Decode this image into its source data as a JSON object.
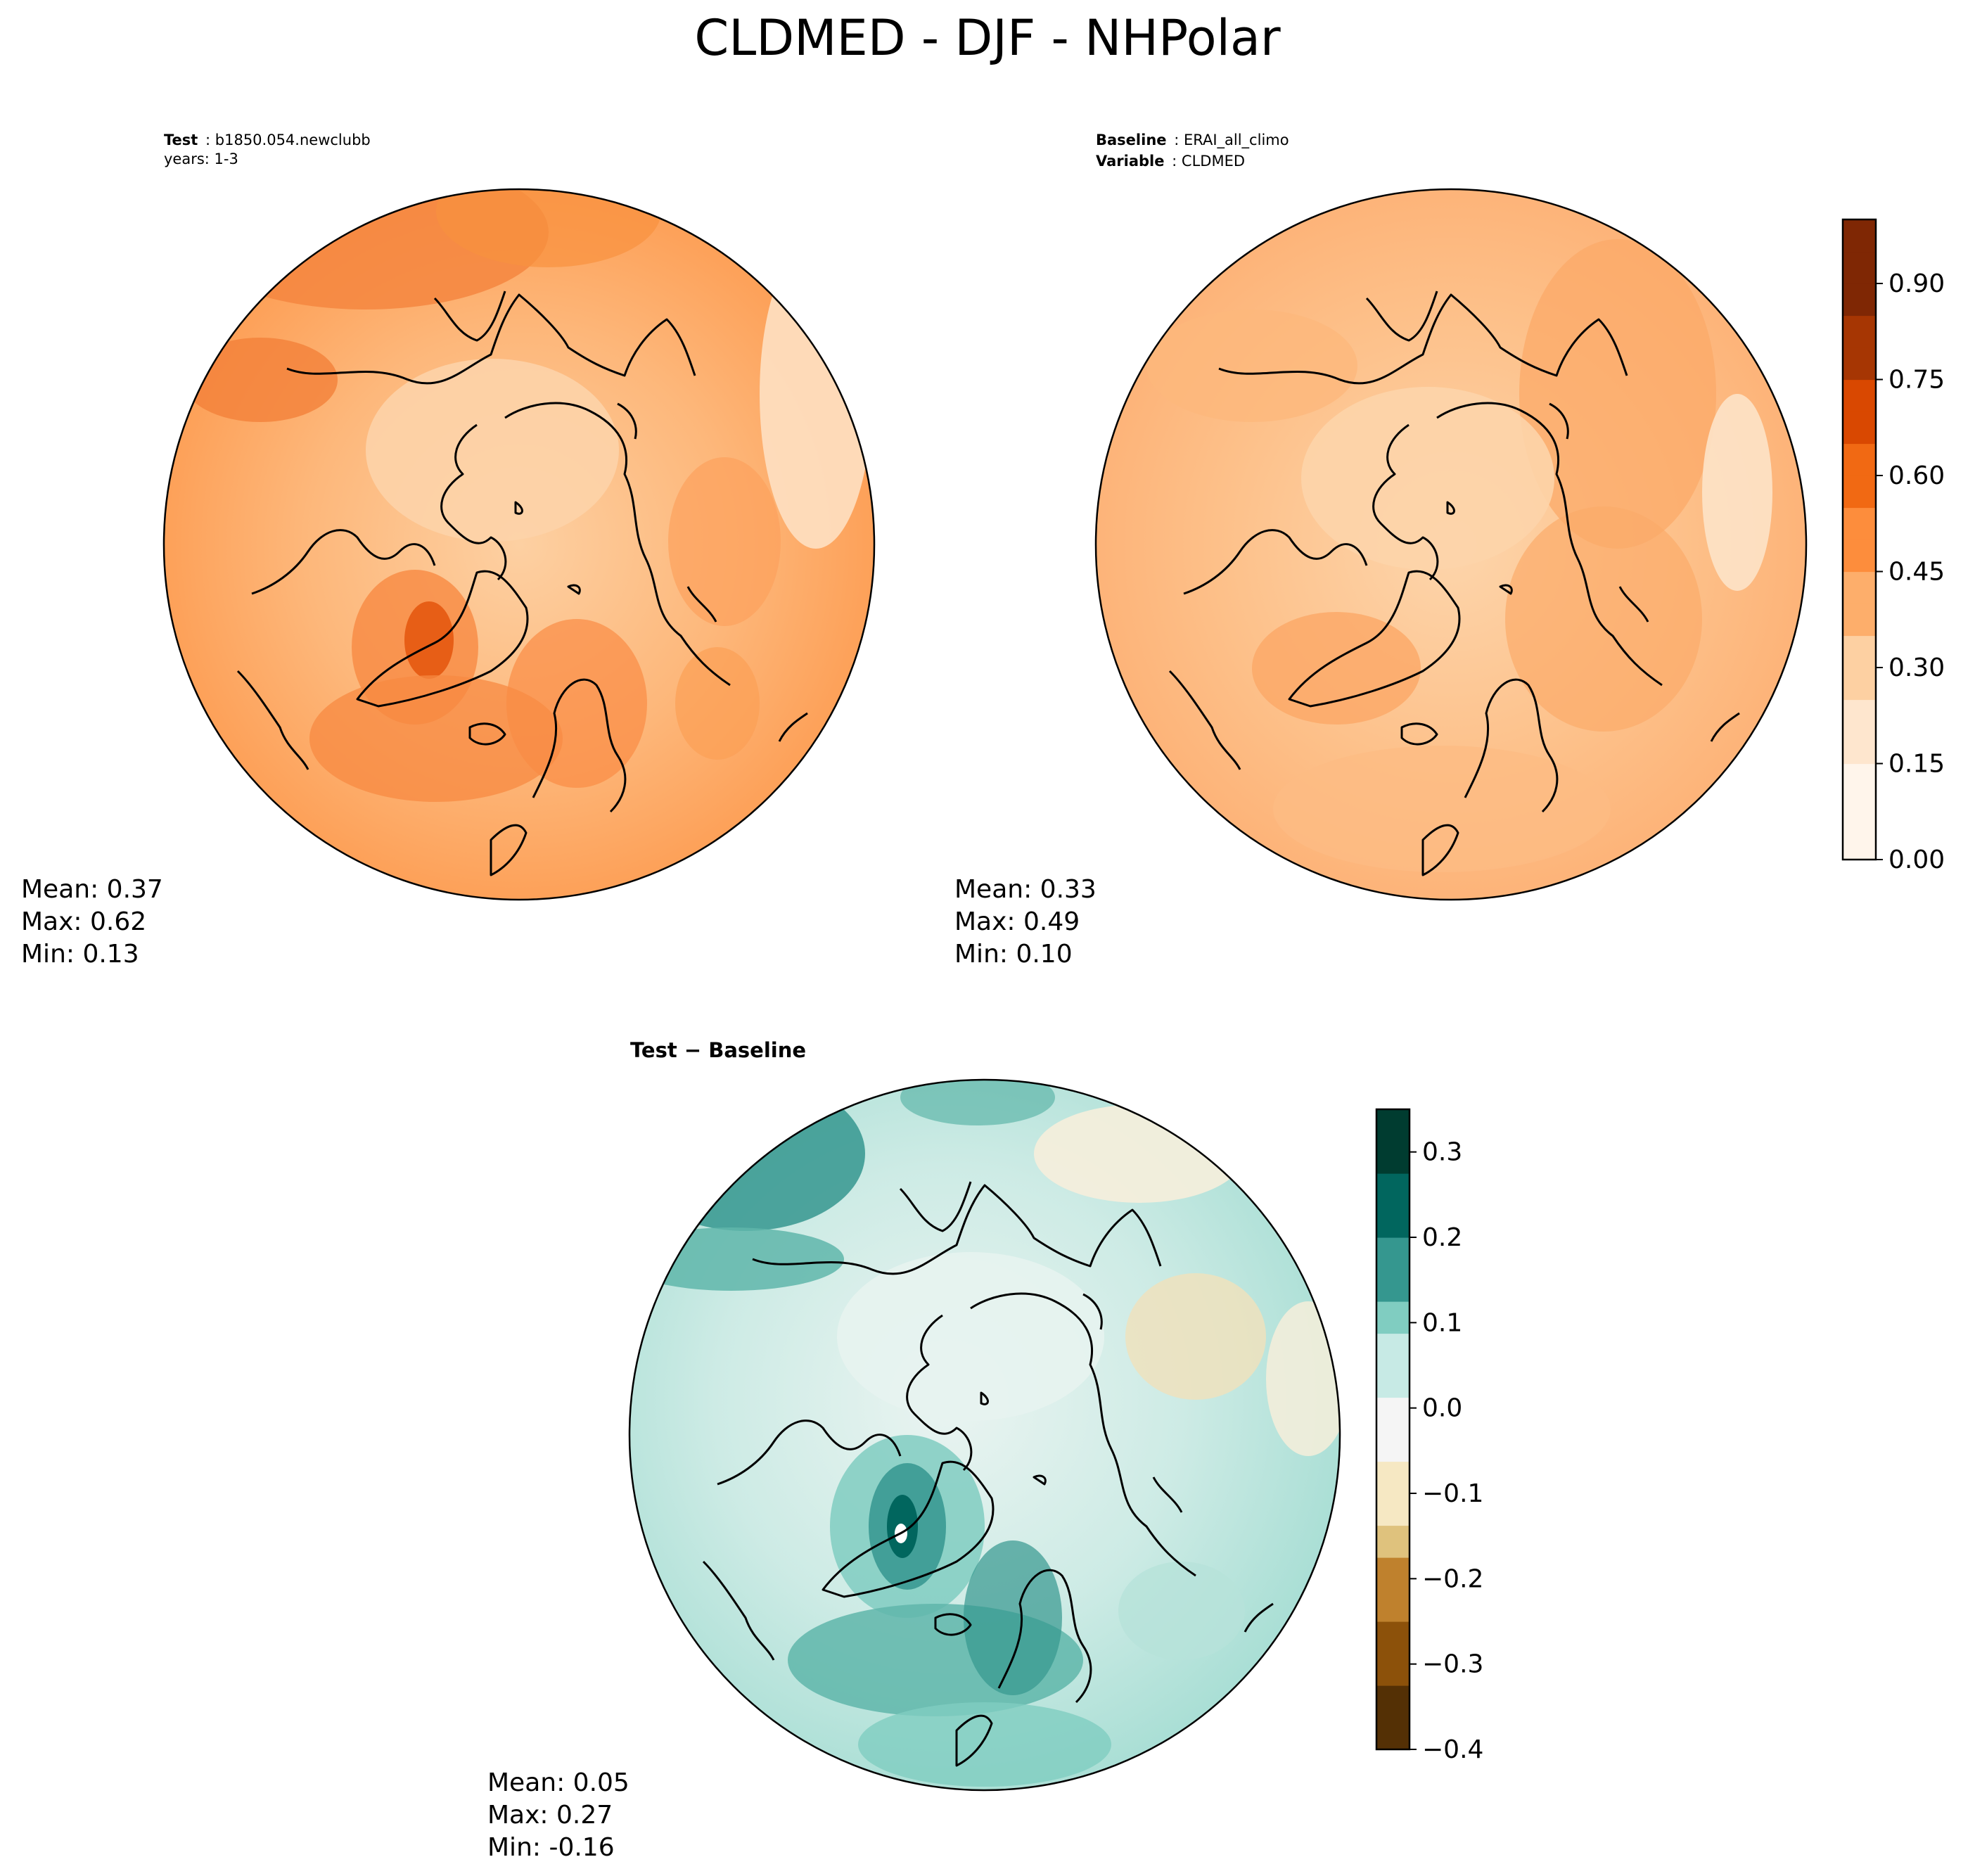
{
  "title": "CLDMED - DJF - NHPolar",
  "panels": {
    "test": {
      "header_label": "Test",
      "header_value": "b1850.054.newclubb",
      "header_line2": "years: 1-3",
      "mean": "Mean:  0.37",
      "max": "Max:  0.62",
      "min": "Min:  0.13"
    },
    "baseline": {
      "header_label": "Baseline",
      "header_value": "ERAI_all_climo",
      "header_label2": "Variable",
      "header_value2": "CLDMED",
      "mean": "Mean:  0.33",
      "max": "Max:  0.49",
      "min": "Min:  0.10"
    },
    "diff": {
      "title": "Test − Baseline",
      "mean": "Mean:  0.05",
      "max": "Max:  0.27",
      "min": "Min: -0.16"
    }
  },
  "colorbar_top": {
    "ticks": [
      "0.00",
      "0.15",
      "0.30",
      "0.45",
      "0.60",
      "0.75",
      "0.90"
    ],
    "range": [
      0.0,
      1.0
    ],
    "colors": [
      "#fff5eb",
      "#fee6ce",
      "#fdd0a2",
      "#fdae6b",
      "#fd8d3c",
      "#f16913",
      "#d94801",
      "#a63603",
      "#7f2704"
    ]
  },
  "colorbar_diff": {
    "ticks": [
      "−0.4",
      "−0.3",
      "−0.2",
      "−0.1",
      "0.0",
      "0.1",
      "0.2",
      "0.3"
    ],
    "range": [
      -0.4,
      0.35
    ],
    "colors": [
      "#543005",
      "#8c510a",
      "#bf812d",
      "#dfc27d",
      "#f6e8c3",
      "#f5f5f5",
      "#c7eae5",
      "#80cdc1",
      "#35978f",
      "#01665e",
      "#003c30"
    ]
  }
}
